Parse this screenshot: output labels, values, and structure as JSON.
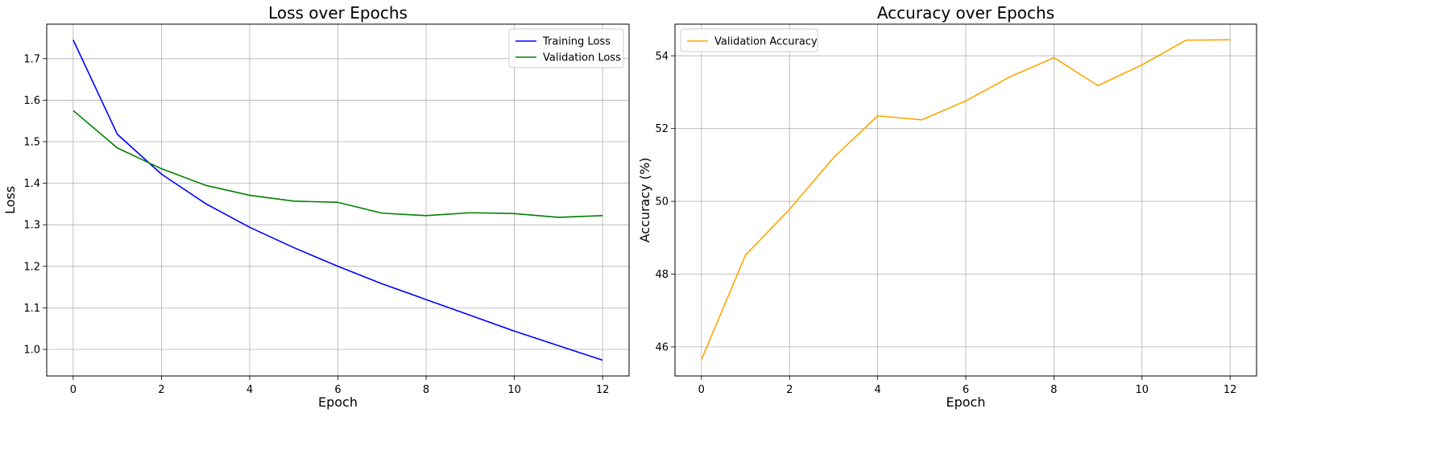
{
  "chart_data": [
    {
      "type": "line",
      "title": "Loss over Epochs",
      "xlabel": "Epoch",
      "ylabel": "Loss",
      "xlim": [
        -0.6,
        12.6
      ],
      "ylim": [
        0.936,
        1.783
      ],
      "xticks": [
        0,
        2,
        4,
        6,
        8,
        10,
        12
      ],
      "yticks": [
        1.0,
        1.1,
        1.2,
        1.3,
        1.4,
        1.5,
        1.6,
        1.7
      ],
      "ytick_decimals": 1,
      "grid": true,
      "legend_position": "top-right",
      "x": [
        0,
        1,
        2,
        3,
        4,
        5,
        6,
        7,
        8,
        9,
        10,
        11,
        12
      ],
      "series": [
        {
          "name": "Training Loss",
          "color": "#0000ff",
          "values": [
            1.745,
            1.518,
            1.422,
            1.351,
            1.294,
            1.245,
            1.2,
            1.158,
            1.12,
            1.082,
            1.044,
            1.009,
            0.974
          ]
        },
        {
          "name": "Validation Loss",
          "color": "#008000",
          "values": [
            1.575,
            1.485,
            1.435,
            1.395,
            1.371,
            1.357,
            1.354,
            1.328,
            1.322,
            1.329,
            1.327,
            1.318,
            1.322
          ]
        }
      ]
    },
    {
      "type": "line",
      "title": "Accuracy over Epochs",
      "xlabel": "Epoch",
      "ylabel": "Accuracy (%)",
      "xlim": [
        -0.6,
        12.6
      ],
      "ylim": [
        45.2,
        54.87
      ],
      "xticks": [
        0,
        2,
        4,
        6,
        8,
        10,
        12
      ],
      "yticks": [
        46,
        48,
        50,
        52,
        54
      ],
      "ytick_decimals": 0,
      "grid": true,
      "legend_position": "top-left",
      "x": [
        0,
        1,
        2,
        3,
        4,
        5,
        6,
        7,
        8,
        9,
        10,
        11,
        12
      ],
      "series": [
        {
          "name": "Validation Accuracy",
          "color": "#ffa500",
          "values": [
            45.65,
            48.52,
            49.78,
            51.2,
            52.35,
            52.24,
            52.76,
            53.42,
            53.95,
            53.18,
            53.75,
            54.43,
            54.44
          ]
        }
      ]
    }
  ]
}
